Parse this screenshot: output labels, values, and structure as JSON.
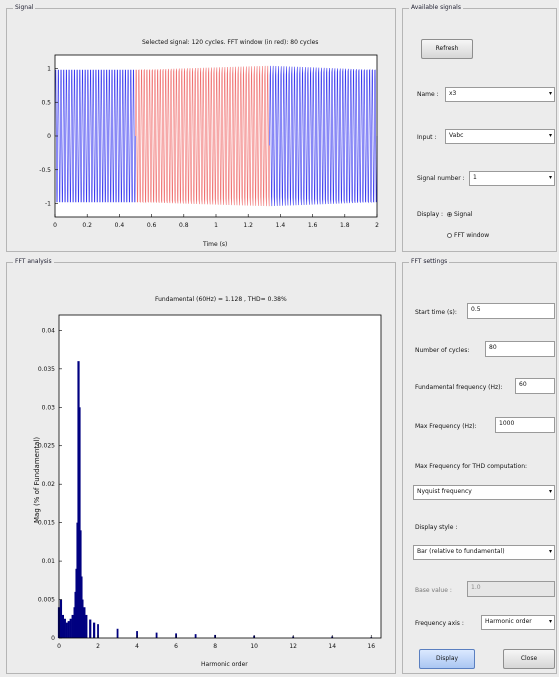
{
  "signal_panel": {
    "title": "Signal",
    "plot_title": "Selected signal: 120 cycles. FFT window (in red): 80 cycles",
    "xlabel": "Time (s)",
    "xticks": [
      "0",
      "0.2",
      "0.4",
      "0.6",
      "0.8",
      "1",
      "1.2",
      "1.4",
      "1.6",
      "1.8",
      "2"
    ],
    "yticks": [
      "1",
      "0.5",
      "0",
      "-0.5",
      "-1"
    ]
  },
  "available_signals": {
    "title": "Available signals",
    "refresh_label": "Refresh",
    "name_label": "Name :",
    "name_value": "x3",
    "input_label": "Input :",
    "input_value": "Vabc",
    "signal_number_label": "Signal number :",
    "signal_number_value": "1",
    "display_label": "Display :",
    "display_signal": "Signal",
    "display_fft_window": "FFT window",
    "display_selected": "signal"
  },
  "fft_analysis": {
    "title": "FFT analysis",
    "plot_title": "Fundamental (60Hz) = 1.128 , THD= 0.38%",
    "xlabel": "Harmonic order",
    "ylabel": "Mag (% of Fundamental)",
    "xticks": [
      "0",
      "2",
      "4",
      "6",
      "8",
      "10",
      "12",
      "14",
      "16"
    ],
    "yticks": [
      "0.04",
      "0.035",
      "0.03",
      "0.025",
      "0.02",
      "0.015",
      "0.01",
      "0.005",
      "0"
    ]
  },
  "fft_settings": {
    "title": "FFT settings",
    "start_time_label": "Start time (s):",
    "start_time_value": "0.5",
    "num_cycles_label": "Number of cycles:",
    "num_cycles_value": "80",
    "fund_freq_label": "Fundamental frequency (Hz):",
    "fund_freq_value": "60",
    "max_freq_label": "Max Frequency (Hz):",
    "max_freq_value": "1000",
    "max_freq_thd_label": "Max Frequency for THD computation:",
    "max_freq_thd_value": "Nyquist frequency",
    "display_style_label": "Display style :",
    "display_style_value": "Bar (relative to fundamental)",
    "base_value_label": "Base value :",
    "base_value_value": "1.0",
    "freq_axis_label": "Frequency axis :",
    "freq_axis_value": "Harmonic order",
    "display_button": "Display",
    "close_button": "Close"
  },
  "colors": {
    "signal_blue": "#3a3af0",
    "fft_window_red": "#f07070",
    "bar_navy": "#000080"
  },
  "chart_data": [
    {
      "type": "line",
      "title": "Selected signal: 120 cycles. FFT window (in red): 80 cycles",
      "xlabel": "Time (s)",
      "ylabel": "",
      "xlim": [
        0,
        2
      ],
      "ylim": [
        -1.2,
        1.2
      ],
      "series": [
        {
          "frequency_hz": 60,
          "amplitude": 1.128
        }
      ],
      "fft_window": [
        0.5,
        1.333
      ],
      "grid": false
    },
    {
      "type": "bar",
      "title": "Fundamental (60Hz) = 1.128 , THD= 0.38%",
      "xlabel": "Harmonic order",
      "ylabel": "Mag (% of Fundamental)",
      "xlim": [
        0,
        16.5
      ],
      "ylim": [
        0,
        0.042
      ],
      "x": [
        0,
        0.1,
        0.2,
        0.3,
        0.4,
        0.5,
        0.6,
        0.7,
        0.8,
        0.85,
        0.9,
        0.95,
        1.0,
        1.05,
        1.1,
        1.15,
        1.2,
        1.3,
        1.4,
        1.6,
        1.8,
        2,
        3,
        4,
        5,
        6,
        7,
        8,
        10,
        12,
        14,
        16
      ],
      "values": [
        0.004,
        0.005,
        0.003,
        0.0025,
        0.002,
        0.0022,
        0.0025,
        0.003,
        0.004,
        0.006,
        0.009,
        0.015,
        0.036,
        0.03,
        0.014,
        0.008,
        0.005,
        0.004,
        0.003,
        0.0024,
        0.002,
        0.0018,
        0.0012,
        0.0009,
        0.0007,
        0.0006,
        0.0005,
        0.0004,
        0.0003,
        0.0002,
        0.0002,
        0.0001
      ]
    }
  ]
}
